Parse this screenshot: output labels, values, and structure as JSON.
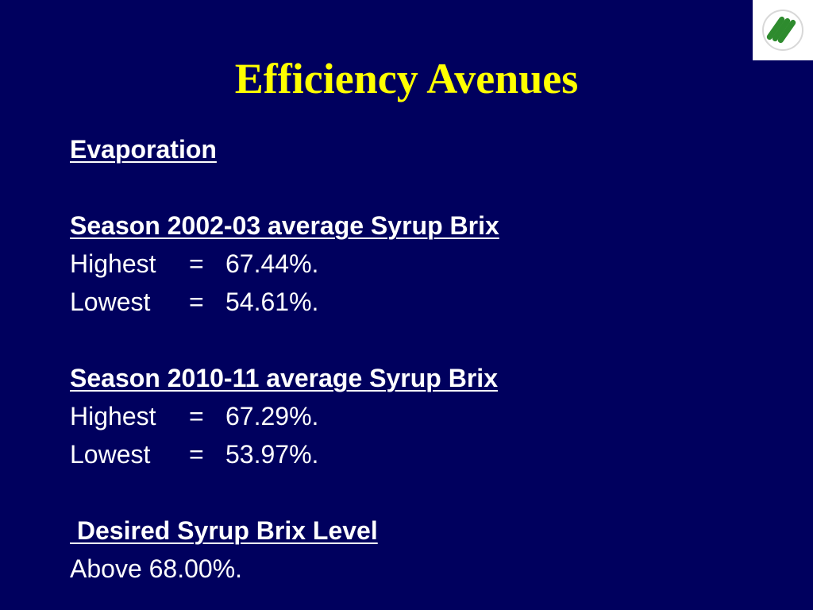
{
  "slide": {
    "title": "Efficiency Avenues",
    "section_heading": "Evaporation",
    "season_1": {
      "heading": "Season 2002-03 average Syrup Brix",
      "rows": [
        {
          "label": "Highest",
          "sign": "=",
          "value": "67.44%."
        },
        {
          "label": "Lowest",
          "sign": "=",
          "value": "54.61%."
        }
      ]
    },
    "season_2": {
      "heading": "Season 2010-11 average Syrup Brix",
      "rows": [
        {
          "label": "Highest",
          "sign": "=",
          "value": "67.29%."
        },
        {
          "label": "Lowest",
          "sign": "=",
          "value": "53.97%."
        }
      ]
    },
    "desired": {
      "heading": " Desired Syrup Brix Level",
      "value": "Above 68.00%."
    }
  },
  "colors": {
    "background": "#00005e",
    "title": "#ffff00",
    "text": "#ffffff",
    "logo_green": "#2e8b2e"
  },
  "icons": {
    "logo": "company-logo-icon"
  }
}
